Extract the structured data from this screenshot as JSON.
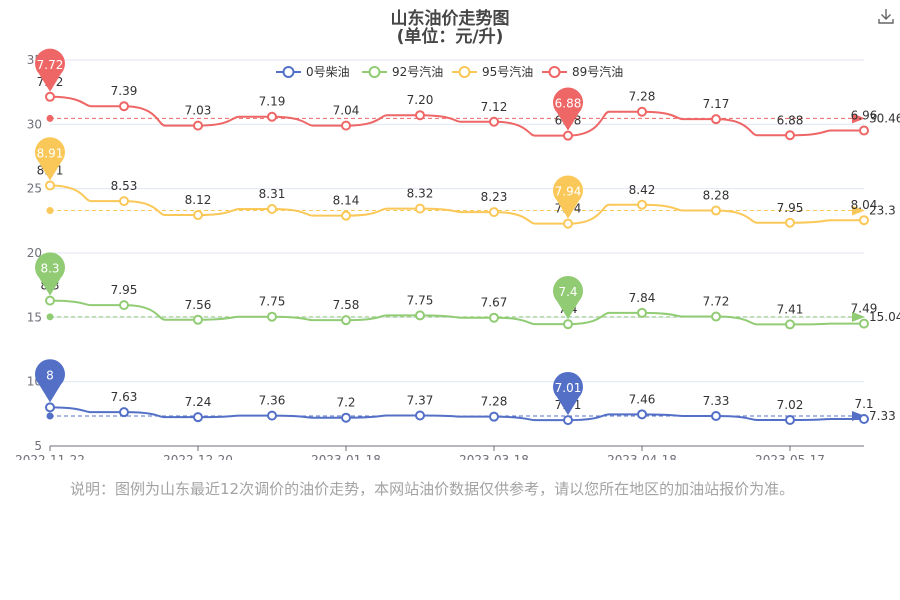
{
  "title": "山东油价走势图",
  "subtitle": "(单位：元/升)",
  "note": "说明：图例为山东最近12次调价的油价走势，本网站油价数据仅供参考，请以您所在地区的加油站报价为准。",
  "download_icon": "download-icon",
  "chart_data": {
    "type": "line",
    "y_axis": {
      "min": 5,
      "max": 35,
      "ticks": [
        5,
        10,
        15,
        20,
        25,
        30,
        35
      ],
      "tick_labels": [
        "5",
        "10",
        "15",
        "20",
        "25",
        "30",
        "35"
      ]
    },
    "x_tick_labels": [
      "2022-11-22",
      "2022-12-20",
      "2023-01-18",
      "2023-03-18",
      "2023-04-18",
      "2023-05-17"
    ],
    "grid": true,
    "legend": "top-center",
    "series": [
      {
        "name": "0号柴油",
        "color": "#5470c6",
        "labels": [
          "8",
          "7.63",
          "7.24",
          "7.36",
          "7.2",
          "7.37",
          "7.28",
          "7.01",
          "7.46",
          "7.33",
          "7.02",
          "7.1"
        ],
        "positions": [
          8,
          7.63,
          7.24,
          7.36,
          7.2,
          7.37,
          7.28,
          7.01,
          7.46,
          7.33,
          7.02,
          7.1
        ],
        "max_label": "8",
        "min_label": "7.01",
        "average": 7.33,
        "average_label": "7.33"
      },
      {
        "name": "92号汽油",
        "color": "#91cc75",
        "labels": [
          "8.3",
          "7.95",
          "7.56",
          "7.75",
          "7.58",
          "7.75",
          "7.67",
          "7.4",
          "7.84",
          "7.72",
          "7.41",
          "7.49"
        ],
        "positions": [
          16.3,
          15.95,
          14.81,
          15.05,
          14.78,
          15.15,
          14.97,
          14.47,
          15.35,
          15.06,
          14.45,
          14.51
        ],
        "max_label": "8.3",
        "min_label": "7.4",
        "average": 15.04,
        "average_label": "15.04"
      },
      {
        "name": "95号汽油",
        "color": "#fac858",
        "labels": [
          "8.91",
          "8.53",
          "8.12",
          "8.31",
          "8.14",
          "8.32",
          "8.23",
          "7.94",
          "8.42",
          "8.28",
          "7.95",
          "8.04"
        ],
        "positions": [
          25.25,
          24.03,
          22.95,
          23.42,
          22.9,
          23.45,
          23.18,
          22.28,
          23.75,
          23.3,
          22.35,
          22.55
        ],
        "max_label": "8.91",
        "min_label": "7.94",
        "average": 23.3,
        "average_label": "23.3"
      },
      {
        "name": "89号汽油",
        "color": "#ee6666",
        "labels": [
          "7.72",
          "7.39",
          "7.03",
          "7.19",
          "7.04",
          "7.20",
          "7.12",
          "6.88",
          "7.28",
          "7.17",
          "6.88",
          "6.96"
        ],
        "positions": [
          32.14,
          31.41,
          29.9,
          30.59,
          29.9,
          30.71,
          30.2,
          29.12,
          30.98,
          30.4,
          29.15,
          29.52
        ],
        "max_label": "7.72",
        "min_label": "6.88",
        "average": 30.46,
        "average_label": "30.46"
      }
    ]
  }
}
